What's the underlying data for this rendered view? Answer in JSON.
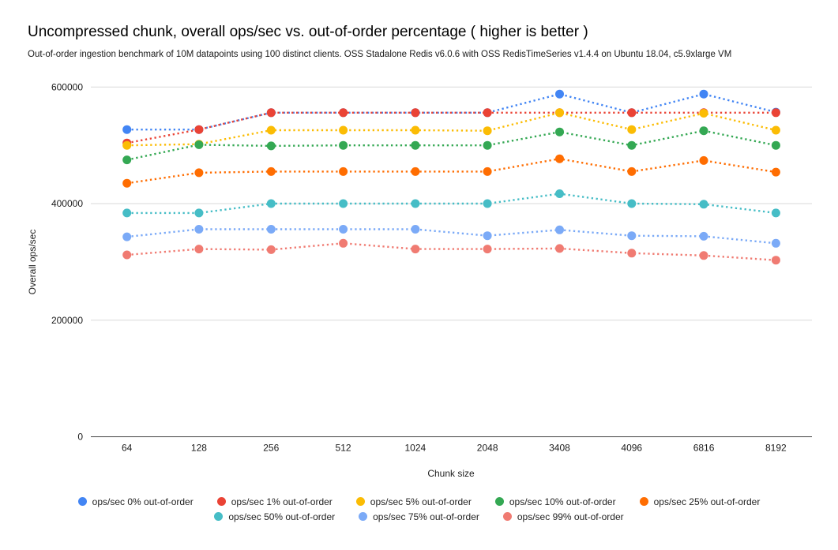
{
  "header": {
    "title": "Uncompressed chunk, overall ops/sec vs. out-of-order percentage ( higher is better )",
    "subtitle": "Out-of-order ingestion benchmark of 10M datapoints using 100 distinct clients. OSS Stadalone Redis v6.0.6 with OSS RedisTimeSeries v1.4.4 on Ubuntu 18.04, c5.9xlarge VM"
  },
  "chart_data": {
    "type": "line",
    "line_style": "dotted",
    "point_style": "circle",
    "title": "Uncompressed chunk, overall ops/sec vs. out-of-order percentage ( higher is better )",
    "xlabel": "Chunk size",
    "ylabel": "Overall ops/sec",
    "categories": [
      "64",
      "128",
      "256",
      "512",
      "1024",
      "2048",
      "3408",
      "4096",
      "6816",
      "8192"
    ],
    "ylim": [
      0,
      600000
    ],
    "yticks": [
      0,
      200000,
      400000,
      600000
    ],
    "ytick_labels": [
      "0",
      "200000",
      "400000",
      "600000"
    ],
    "grid": true,
    "legend_position": "bottom",
    "legend_rows": [
      [
        0,
        1,
        2,
        3,
        4
      ],
      [
        5,
        6,
        7
      ]
    ],
    "series": [
      {
        "name": "ops/sec 0% out-of-order",
        "color": "#4285F4",
        "values": [
          527000,
          527000,
          556000,
          556000,
          556000,
          556000,
          588000,
          556000,
          588000,
          557000
        ]
      },
      {
        "name": "ops/sec 1% out-of-order",
        "color": "#EA4335",
        "values": [
          504000,
          527000,
          556000,
          556000,
          556000,
          556000,
          556000,
          556000,
          556000,
          556000
        ]
      },
      {
        "name": "ops/sec 5% out-of-order",
        "color": "#FBBC04",
        "values": [
          500000,
          502000,
          526000,
          526000,
          526000,
          525000,
          556000,
          527000,
          555000,
          526000
        ]
      },
      {
        "name": "ops/sec 10% out-of-order",
        "color": "#34A853",
        "values": [
          475000,
          501000,
          499000,
          500000,
          500000,
          500000,
          523000,
          500000,
          525000,
          500000
        ]
      },
      {
        "name": "ops/sec 25% out-of-order",
        "color": "#FF6D01",
        "values": [
          435000,
          453000,
          455000,
          455000,
          455000,
          455000,
          477000,
          455000,
          474000,
          454000
        ]
      },
      {
        "name": "ops/sec 50% out-of-order",
        "color": "#46BDC6",
        "values": [
          384000,
          384000,
          400000,
          400000,
          400000,
          400000,
          417000,
          400000,
          399000,
          384000
        ]
      },
      {
        "name": "ops/sec 75% out-of-order",
        "color": "#7BAAF7",
        "values": [
          343000,
          356000,
          356000,
          356000,
          356000,
          345000,
          355000,
          345000,
          344000,
          332000
        ]
      },
      {
        "name": "ops/sec 99% out-of-order",
        "color": "#F07B72",
        "values": [
          312000,
          322000,
          321000,
          332000,
          322000,
          322000,
          323000,
          315000,
          311000,
          303000
        ]
      }
    ],
    "style": {
      "gridline_color": "#d9d9d9",
      "baseline_color": "#424242",
      "tick_label_color": "#1a1a1a",
      "point_radius": 5.5,
      "line_width": 2.4
    }
  }
}
